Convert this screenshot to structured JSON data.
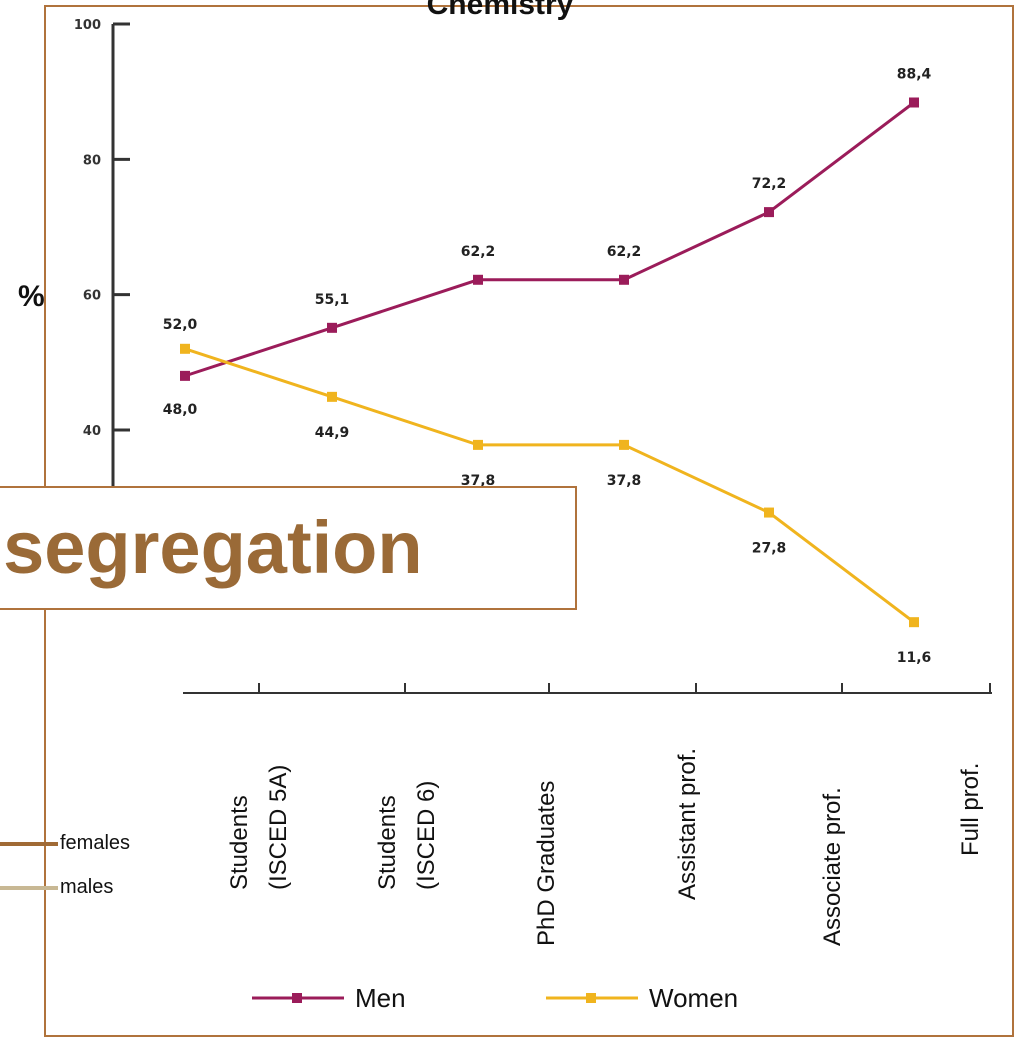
{
  "callout": {
    "text": "l segregation"
  },
  "side_legend": [
    {
      "label": "females",
      "color": "#a06a35"
    },
    {
      "label": "males",
      "color": "#c8b894"
    }
  ],
  "colors": {
    "frame": "#b0733c",
    "men": "#9b1c5a",
    "women": "#f0b41e",
    "axis": "#333333"
  },
  "chart_data": {
    "type": "line",
    "title": "Chemistry",
    "ylabel": "%",
    "xlabel": "",
    "ylim": [
      0,
      100
    ],
    "yticks": [
      40,
      60,
      80,
      100
    ],
    "categories": [
      "Students (ISCED 5A)",
      "Students (ISCED 6)",
      "PhD Graduates",
      "Assistant prof.",
      "Associate prof.",
      "Full prof."
    ],
    "category_lines": [
      [
        "Students",
        "(ISCED 5A)"
      ],
      [
        "Students",
        "(ISCED 6)"
      ],
      [
        "PhD Graduates"
      ],
      [
        "Assistant prof."
      ],
      [
        "Associate prof."
      ],
      [
        "Full prof."
      ]
    ],
    "series": [
      {
        "name": "Men",
        "values": [
          48.0,
          55.1,
          62.2,
          62.2,
          72.2,
          88.4
        ],
        "labels": [
          "48,0",
          "55,1",
          "62,2",
          "62,2",
          "72,2",
          "88,4"
        ],
        "color": "#9b1c5a"
      },
      {
        "name": "Women",
        "values": [
          52.0,
          44.9,
          37.8,
          37.8,
          27.8,
          11.6
        ],
        "labels": [
          "52,0",
          "44,9",
          "37,8",
          "37,8",
          "27,8",
          "11,6"
        ],
        "color": "#f0b41e"
      }
    ],
    "legend_position": "bottom",
    "grid": false
  }
}
